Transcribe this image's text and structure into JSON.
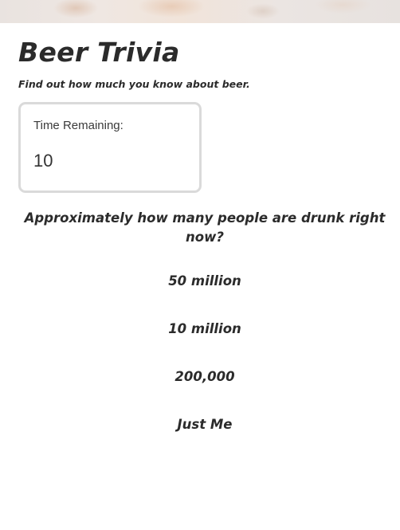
{
  "header": {
    "title": "Beer Trivia",
    "subtitle": "Find out how much you know about beer."
  },
  "timer": {
    "label": "Time Remaining:",
    "value": "10"
  },
  "quiz": {
    "question": "Approximately how many people are drunk right now?",
    "answers": [
      "50 million",
      "10 million",
      "200,000",
      "Just Me"
    ]
  }
}
